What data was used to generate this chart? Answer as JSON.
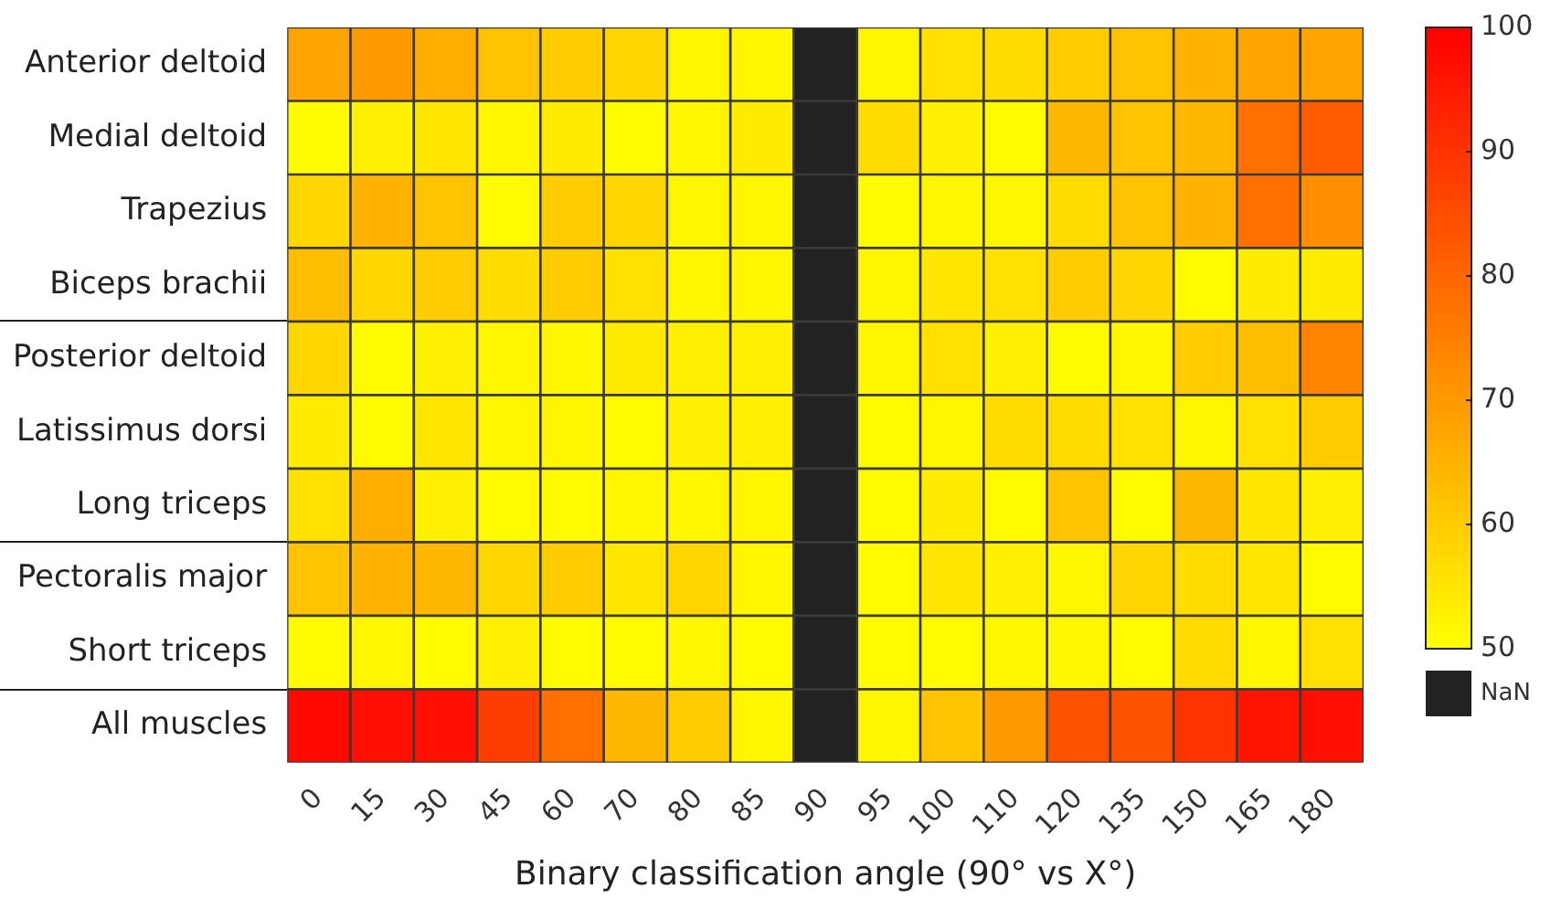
{
  "chart_data": {
    "type": "heatmap",
    "xlabel": "Binary classification angle (90° vs X°)",
    "categories": [
      "0",
      "15",
      "30",
      "45",
      "60",
      "70",
      "80",
      "85",
      "90",
      "95",
      "100",
      "110",
      "120",
      "135",
      "150",
      "165",
      "180"
    ],
    "y_categories": [
      "Anterior deltoid",
      "Medial deltoid",
      "Trapezius",
      "Biceps brachii",
      "Posterior deltoid",
      "Latissimus dorsi",
      "Long triceps",
      "Pectoralis major",
      "Short triceps",
      "All muscles"
    ],
    "cells": [
      [
        68,
        70,
        66,
        62,
        60,
        58,
        52,
        52,
        null,
        52,
        56,
        57,
        60,
        62,
        65,
        68,
        68
      ],
      [
        51,
        53,
        55,
        52,
        54,
        51,
        52,
        54,
        null,
        57,
        53,
        51,
        64,
        62,
        64,
        78,
        82
      ],
      [
        58,
        65,
        62,
        51,
        60,
        58,
        52,
        52,
        null,
        51,
        52,
        52,
        57,
        62,
        65,
        78,
        72
      ],
      [
        63,
        58,
        60,
        57,
        60,
        56,
        52,
        52,
        null,
        52,
        55,
        56,
        60,
        58,
        51,
        54,
        54
      ],
      [
        58,
        51,
        53,
        52,
        52,
        54,
        53,
        53,
        null,
        52,
        56,
        53,
        51,
        52,
        60,
        63,
        74
      ],
      [
        54,
        51,
        55,
        52,
        52,
        51,
        53,
        53,
        null,
        51,
        52,
        57,
        57,
        56,
        52,
        56,
        60
      ],
      [
        56,
        66,
        53,
        51,
        51,
        52,
        52,
        52,
        null,
        51,
        54,
        51,
        62,
        51,
        64,
        55,
        53
      ],
      [
        62,
        65,
        64,
        58,
        60,
        55,
        58,
        52,
        null,
        51,
        55,
        53,
        52,
        58,
        57,
        55,
        51
      ],
      [
        51,
        52,
        51,
        53,
        51,
        51,
        52,
        51,
        null,
        51,
        51,
        52,
        52,
        51,
        57,
        52,
        56
      ],
      [
        98,
        97,
        97,
        88,
        78,
        64,
        60,
        52,
        null,
        52,
        62,
        70,
        84,
        84,
        90,
        96,
        97
      ]
    ],
    "clim": [
      50,
      100
    ],
    "cticks": [
      50,
      60,
      70,
      80,
      90,
      100
    ],
    "annotations": [
      "NaN"
    ]
  }
}
